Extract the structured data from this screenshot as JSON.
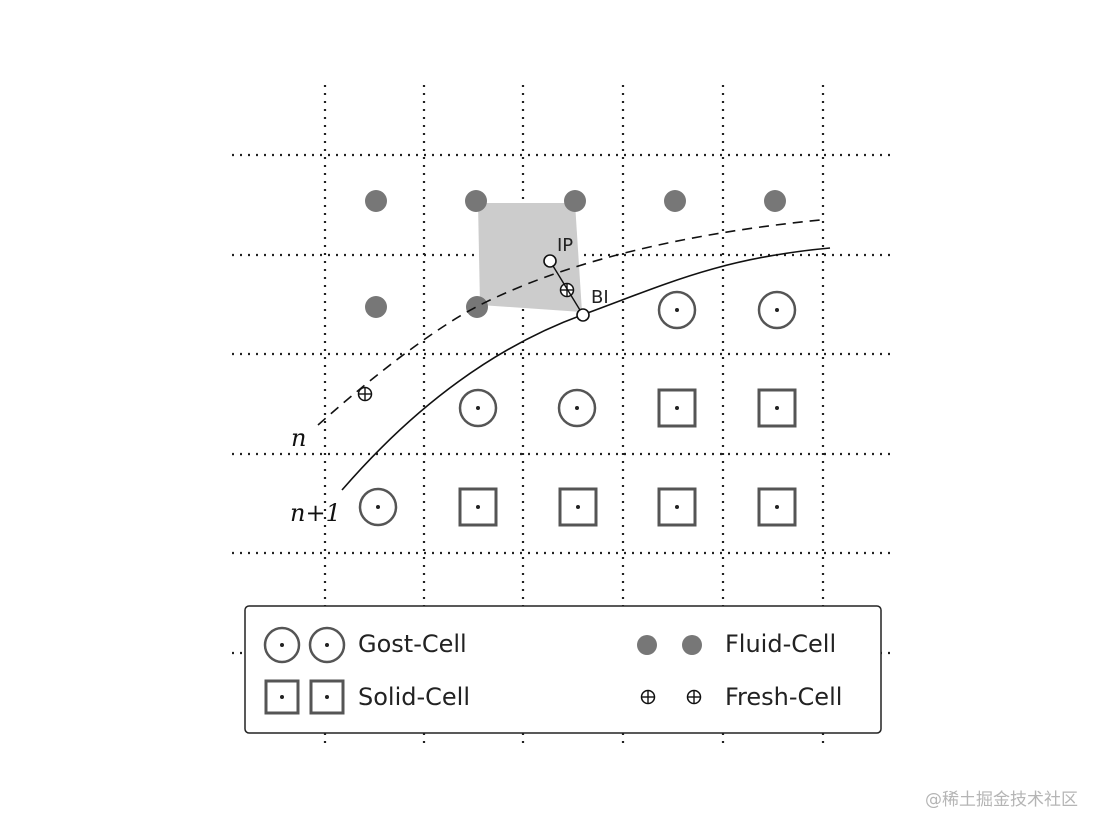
{
  "labels": {
    "ip": "IP",
    "bi": "BI",
    "n": "n",
    "n_plus_1": "n+1"
  },
  "legend": {
    "ghost": "Gost-Cell",
    "solid": "Solid-Cell",
    "fluid": "Fluid-Cell",
    "fresh": "Fresh-Cell"
  },
  "watermark": "@稀土掘金技术社区",
  "colors": {
    "fluid": "#777777",
    "shade": "#cccccc",
    "cell_outline": "#555555",
    "line": "#111111"
  }
}
